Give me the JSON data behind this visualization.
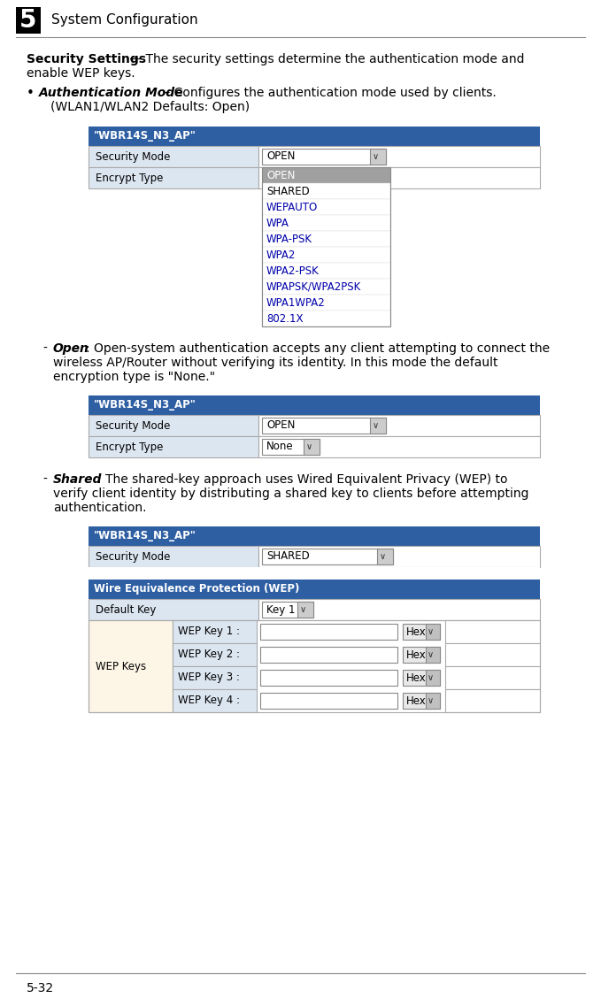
{
  "page_bg": "#ffffff",
  "header_num": "5",
  "header_text": "System Configuration",
  "footer_text": "5-32",
  "blue_header_color": "#2E5FA3",
  "blue_header_text_color": "#ffffff",
  "light_blue_cell": "#dce6f1",
  "wep_keys_bg": "#fdf5e6",
  "cell_border": "#aaaaaa",
  "dropdown_border": "#888888",
  "body_text_color": "#000000",
  "blue_link_color": "#0000cc",
  "table1_header": "\"WBR14S_N3_AP\"",
  "table1_row1_label": "Security Mode",
  "table1_row1_value": "OPEN",
  "table1_row2_label": "Encrypt Type",
  "dropdown_items": [
    "OPEN",
    "SHARED",
    "WEPAUTO",
    "WPA",
    "WPA-PSK",
    "WPA2",
    "WPA2-PSK",
    "WPAPSK/WPA2PSK",
    "WPA1WPA2",
    "802.1X"
  ],
  "table2_header": "\"WBR14S_N3_AP\"",
  "table2_row1_label": "Security Mode",
  "table2_row1_value": "OPEN",
  "table2_row2_label": "Encrypt Type",
  "table2_row2_value": "None",
  "table3_header": "\"WBR14S_N3_AP\"",
  "table3_row1_label": "Security Mode",
  "table3_row1_value": "SHARED",
  "table3_wep_header": "Wire Equivalence Protection (WEP)",
  "table3_default_key_label": "Default Key",
  "table3_default_key_value": "Key 1",
  "table3_wep_keys_label": "WEP Keys",
  "table3_wep_key_labels": [
    "WEP Key 1 :",
    "WEP Key 2 :",
    "WEP Key 3 :",
    "WEP Key 4 :"
  ],
  "hex_label": "Hex"
}
